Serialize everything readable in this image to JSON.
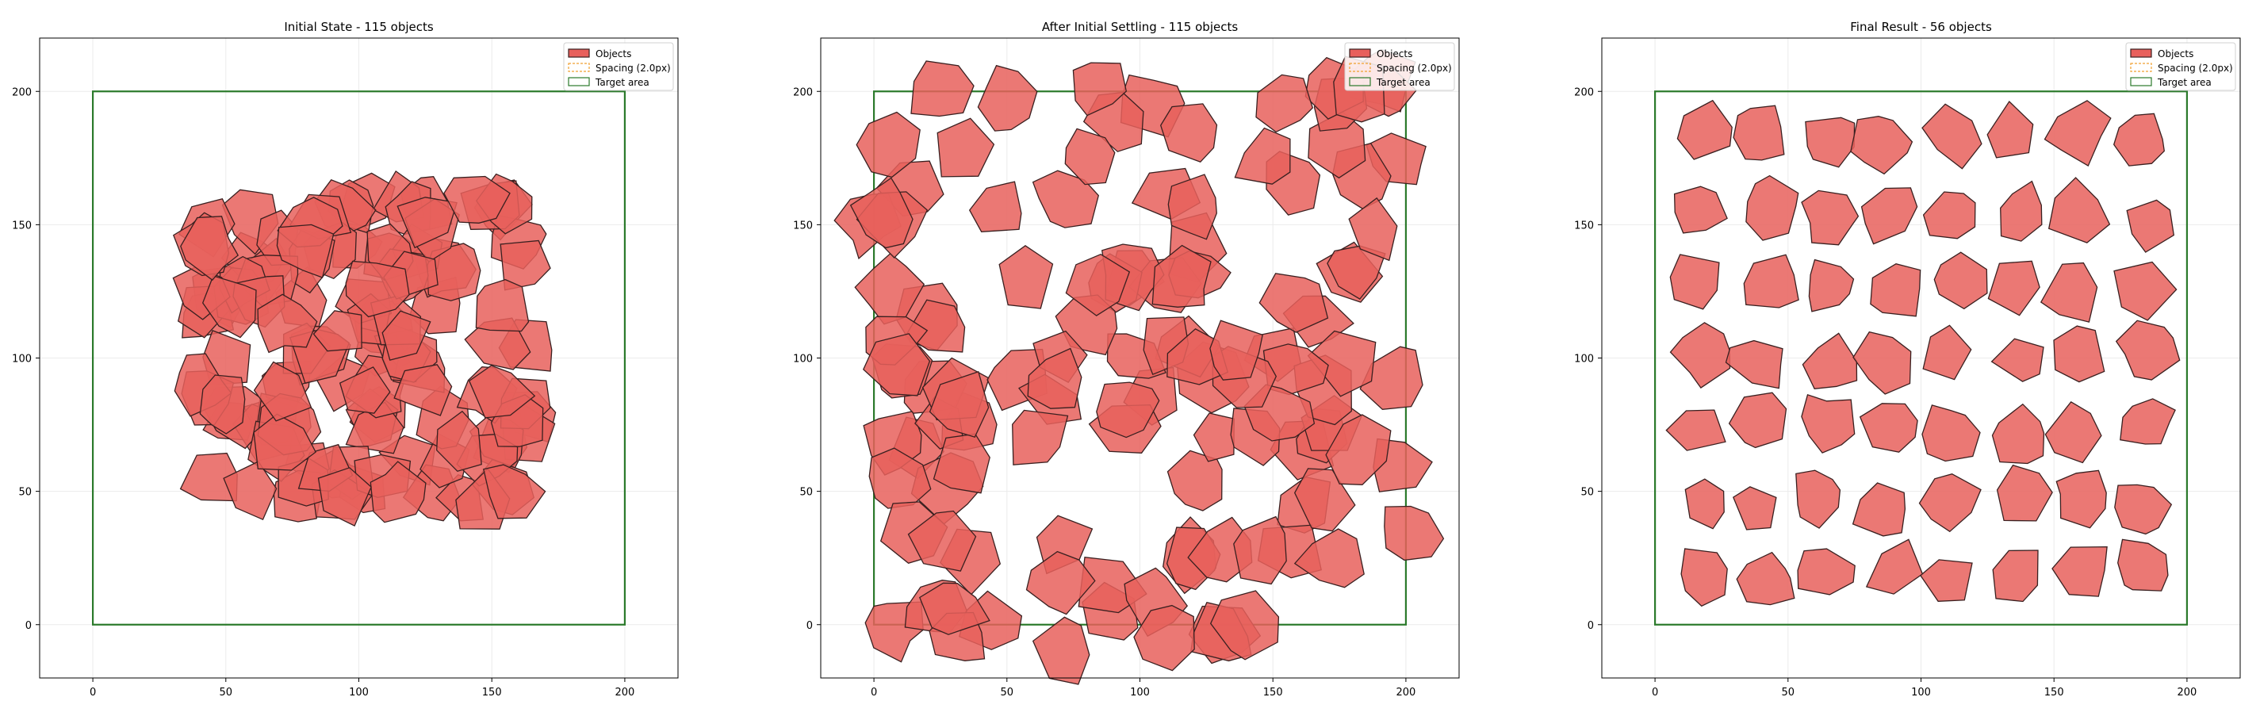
{
  "colors": {
    "object_fill": "#e8605c",
    "object_edge": "#3a2020",
    "spacing_edge": "#f0a030",
    "target_edge": "#2b7a2b",
    "grid": "#ebebeb"
  },
  "chart_data": [
    {
      "type": "scatter",
      "title": "Initial State - 115 objects",
      "object_count": 115,
      "xlim": [
        -20,
        220
      ],
      "ylim": [
        -20,
        220
      ],
      "x_ticks": [
        0,
        50,
        100,
        150,
        200
      ],
      "y_ticks": [
        0,
        50,
        100,
        150,
        200
      ],
      "grid": true,
      "legend_position": "top-right",
      "legend": [
        "Objects",
        "Spacing (2.0px)",
        "Target area"
      ],
      "target_area": {
        "x": [
          0,
          200
        ],
        "y": [
          0,
          200
        ]
      },
      "objects_region": {
        "x": [
          40,
          165
        ],
        "y": [
          40,
          160
        ]
      },
      "object_radius": 11,
      "overlapping": true
    },
    {
      "type": "scatter",
      "title": "After Initial Settling - 115 objects",
      "object_count": 115,
      "xlim": [
        -20,
        220
      ],
      "ylim": [
        -20,
        220
      ],
      "x_ticks": [
        0,
        50,
        100,
        150,
        200
      ],
      "y_ticks": [
        0,
        50,
        100,
        150,
        200
      ],
      "grid": true,
      "legend_position": "top-right",
      "legend": [
        "Objects",
        "Spacing (2.0px)",
        "Target area"
      ],
      "target_area": {
        "x": [
          0,
          200
        ],
        "y": [
          0,
          200
        ]
      },
      "objects_region": {
        "x": [
          -5,
          205
        ],
        "y": [
          -10,
          205
        ]
      },
      "object_radius": 12,
      "overlapping": true
    },
    {
      "type": "scatter",
      "title": "Final Result - 56 objects",
      "object_count": 56,
      "xlim": [
        -20,
        220
      ],
      "ylim": [
        -20,
        220
      ],
      "x_ticks": [
        0,
        50,
        100,
        150,
        200
      ],
      "y_ticks": [
        0,
        50,
        100,
        150,
        200
      ],
      "grid": true,
      "legend_position": "top-right",
      "legend": [
        "Objects",
        "Spacing (2.0px)",
        "Target area"
      ],
      "target_area": {
        "x": [
          0,
          200
        ],
        "y": [
          0,
          200
        ]
      },
      "objects_region": {
        "x": [
          5,
          195
        ],
        "y": [
          5,
          195
        ]
      },
      "object_radius": 11,
      "overlapping": false
    }
  ]
}
